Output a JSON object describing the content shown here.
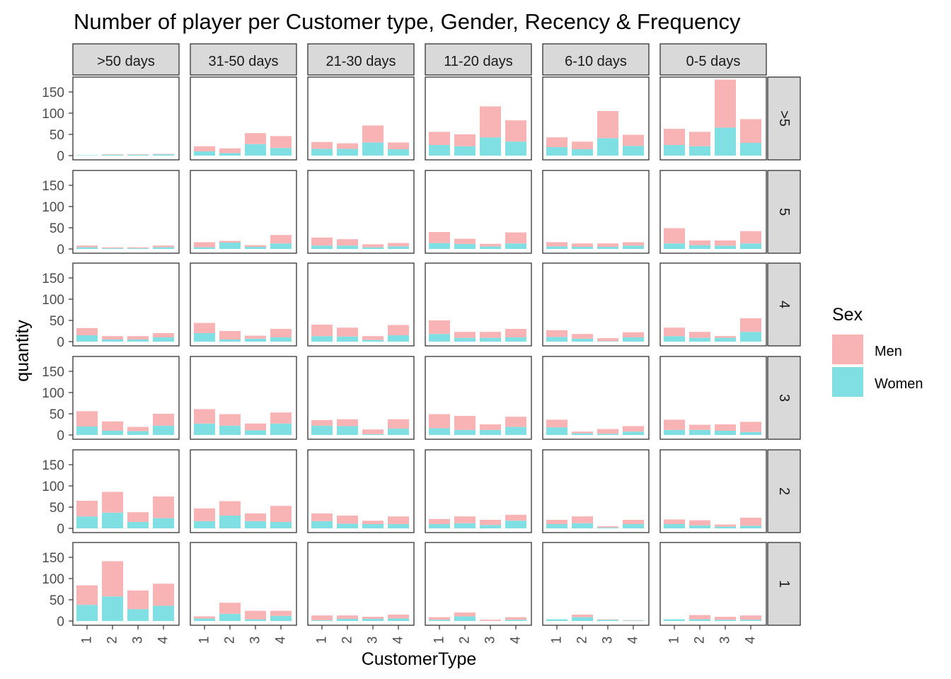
{
  "chart_data": {
    "type": "bar",
    "stacked": true,
    "title": "Number of player per Customer type, Gender, Recency & Frequency",
    "xlabel": "CustomerType",
    "ylabel": "quantity",
    "ylim": [
      0,
      185
    ],
    "yticks": [
      0,
      50,
      100,
      150
    ],
    "categories": [
      "1",
      "2",
      "3",
      "4"
    ],
    "legend": {
      "title": "Sex",
      "placement": "right",
      "entries": [
        {
          "name": "Men",
          "color": "#F8B4B4"
        },
        {
          "name": "Women",
          "color": "#7FDFE2"
        }
      ]
    },
    "col_facets": [
      ">50 days",
      "31-50 days",
      "21-30 days",
      "11-20 days",
      "6-10 days",
      "0-5 days"
    ],
    "row_facets": [
      ">5",
      "5",
      "4",
      "3",
      "2",
      "1"
    ],
    "panels": [
      [
        {
          "women": [
            1,
            2,
            2,
            3
          ],
          "men": [
            0,
            1,
            1,
            1
          ]
        },
        {
          "women": [
            10,
            6,
            27,
            18
          ],
          "men": [
            12,
            11,
            26,
            28
          ]
        },
        {
          "women": [
            16,
            16,
            31,
            15
          ],
          "men": [
            16,
            13,
            40,
            16
          ]
        },
        {
          "women": [
            25,
            22,
            43,
            33
          ],
          "men": [
            31,
            28,
            73,
            50
          ]
        },
        {
          "women": [
            20,
            15,
            41,
            23
          ],
          "men": [
            23,
            18,
            64,
            26
          ]
        },
        {
          "women": [
            25,
            22,
            66,
            30
          ],
          "men": [
            38,
            34,
            113,
            56
          ]
        }
      ],
      [
        {
          "women": [
            4,
            2,
            2,
            4
          ],
          "men": [
            4,
            2,
            2,
            4
          ]
        },
        {
          "women": [
            4,
            15,
            5,
            13
          ],
          "men": [
            12,
            4,
            4,
            20
          ]
        },
        {
          "women": [
            8,
            8,
            4,
            6
          ],
          "men": [
            19,
            15,
            7,
            8
          ]
        },
        {
          "women": [
            14,
            12,
            6,
            13
          ],
          "men": [
            26,
            12,
            6,
            26
          ]
        },
        {
          "women": [
            6,
            5,
            5,
            8
          ],
          "men": [
            10,
            8,
            8,
            8
          ]
        },
        {
          "women": [
            13,
            9,
            8,
            13
          ],
          "men": [
            36,
            11,
            12,
            29
          ]
        }
      ],
      [
        {
          "women": [
            15,
            5,
            5,
            10
          ],
          "men": [
            17,
            8,
            8,
            10
          ]
        },
        {
          "women": [
            20,
            5,
            7,
            10
          ],
          "men": [
            24,
            20,
            7,
            20
          ]
        },
        {
          "women": [
            13,
            12,
            4,
            15
          ],
          "men": [
            27,
            21,
            9,
            24
          ]
        },
        {
          "women": [
            18,
            9,
            9,
            10
          ],
          "men": [
            32,
            14,
            14,
            20
          ]
        },
        {
          "women": [
            11,
            7,
            1,
            10
          ],
          "men": [
            16,
            11,
            7,
            12
          ]
        },
        {
          "women": [
            13,
            9,
            9,
            23
          ],
          "men": [
            20,
            14,
            4,
            32
          ]
        }
      ],
      [
        {
          "women": [
            20,
            10,
            9,
            22
          ],
          "men": [
            36,
            22,
            10,
            28
          ]
        },
        {
          "women": [
            27,
            22,
            11,
            27
          ],
          "men": [
            34,
            27,
            16,
            26
          ]
        },
        {
          "women": [
            22,
            21,
            2,
            15
          ],
          "men": [
            13,
            16,
            11,
            22
          ]
        },
        {
          "women": [
            16,
            12,
            12,
            19
          ],
          "men": [
            33,
            33,
            13,
            24
          ]
        },
        {
          "women": [
            18,
            4,
            3,
            8
          ],
          "men": [
            18,
            4,
            11,
            13
          ]
        },
        {
          "women": [
            12,
            12,
            10,
            7
          ],
          "men": [
            24,
            12,
            15,
            24
          ]
        }
      ],
      [
        {
          "women": [
            28,
            37,
            15,
            24
          ],
          "men": [
            37,
            49,
            23,
            51
          ]
        },
        {
          "women": [
            17,
            30,
            17,
            15
          ],
          "men": [
            30,
            34,
            18,
            38
          ]
        },
        {
          "women": [
            17,
            11,
            10,
            10
          ],
          "men": [
            18,
            19,
            8,
            18
          ]
        },
        {
          "women": [
            10,
            12,
            8,
            18
          ],
          "men": [
            12,
            16,
            12,
            14
          ]
        },
        {
          "women": [
            10,
            12,
            2,
            10
          ],
          "men": [
            10,
            16,
            3,
            10
          ]
        },
        {
          "women": [
            10,
            7,
            4,
            6
          ],
          "men": [
            11,
            12,
            5,
            19
          ]
        }
      ],
      [
        {
          "women": [
            38,
            58,
            28,
            36
          ],
          "men": [
            46,
            83,
            44,
            52
          ]
        },
        {
          "women": [
            6,
            17,
            4,
            12
          ],
          "men": [
            5,
            26,
            20,
            12
          ]
        },
        {
          "women": [
            2,
            5,
            5,
            6
          ],
          "men": [
            11,
            8,
            5,
            9
          ]
        },
        {
          "women": [
            3,
            11,
            0,
            3
          ],
          "men": [
            6,
            9,
            3,
            6
          ]
        },
        {
          "women": [
            4,
            9,
            3,
            1
          ],
          "men": [
            0,
            6,
            1,
            1
          ]
        },
        {
          "women": [
            4,
            4,
            3,
            3
          ],
          "men": [
            0,
            10,
            7,
            10
          ]
        }
      ]
    ]
  }
}
